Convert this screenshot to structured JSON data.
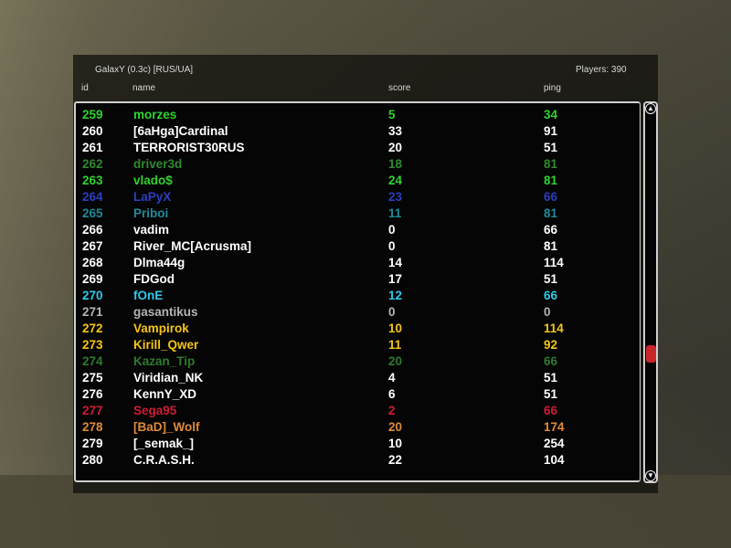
{
  "server": {
    "name": "GalaxY (0.3c) [RUS/UA]",
    "players_label": "Players: 390"
  },
  "columns": {
    "id": "id",
    "name": "name",
    "score": "score",
    "ping": "ping"
  },
  "rows": [
    {
      "id": "259",
      "name": "morzes",
      "score": "5",
      "ping": "34",
      "color": "#2fd22f"
    },
    {
      "id": "260",
      "name": "[6aHga]Cardinal",
      "score": "33",
      "ping": "91",
      "color": "#ffffff"
    },
    {
      "id": "261",
      "name": "TERRORIST30RUS",
      "score": "20",
      "ping": "51",
      "color": "#ffffff"
    },
    {
      "id": "262",
      "name": "driver3d",
      "score": "18",
      "ping": "81",
      "color": "#2f8a2f"
    },
    {
      "id": "263",
      "name": "vlado$",
      "score": "24",
      "ping": "81",
      "color": "#2fd22f"
    },
    {
      "id": "264",
      "name": "LaPyX",
      "score": "23",
      "ping": "66",
      "color": "#2a3fbf"
    },
    {
      "id": "265",
      "name": "Priboi",
      "score": "11",
      "ping": "81",
      "color": "#1f8a9a"
    },
    {
      "id": "266",
      "name": "vadim",
      "score": "0",
      "ping": "66",
      "color": "#ffffff"
    },
    {
      "id": "267",
      "name": "River_MC[Acrusma]",
      "score": "0",
      "ping": "81",
      "color": "#ffffff"
    },
    {
      "id": "268",
      "name": "Dlma44g",
      "score": "14",
      "ping": "114",
      "color": "#ffffff"
    },
    {
      "id": "269",
      "name": "FDGod",
      "score": "17",
      "ping": "51",
      "color": "#ffffff"
    },
    {
      "id": "270",
      "name": "fOnE",
      "score": "12",
      "ping": "66",
      "color": "#2fc8e8"
    },
    {
      "id": "271",
      "name": "gasantikus",
      "score": "0",
      "ping": "0",
      "color": "#b4b4b4"
    },
    {
      "id": "272",
      "name": "Vampirok",
      "score": "10",
      "ping": "114",
      "color": "#f5c518"
    },
    {
      "id": "273",
      "name": "Kirill_Qwer",
      "score": "11",
      "ping": "92",
      "color": "#f5c518"
    },
    {
      "id": "274",
      "name": "Kazan_Tip",
      "score": "20",
      "ping": "66",
      "color": "#2f7a2f"
    },
    {
      "id": "275",
      "name": "Viridian_NK",
      "score": "4",
      "ping": "51",
      "color": "#ffffff"
    },
    {
      "id": "276",
      "name": "KennY_XD",
      "score": "6",
      "ping": "51",
      "color": "#ffffff"
    },
    {
      "id": "277",
      "name": "Sega95",
      "score": "2",
      "ping": "66",
      "color": "#d01c36"
    },
    {
      "id": "278",
      "name": "[BaD]_Wolf",
      "score": "20",
      "ping": "174",
      "color": "#e08a3a"
    },
    {
      "id": "279",
      "name": "[_semak_]",
      "score": "10",
      "ping": "254",
      "color": "#ffffff"
    },
    {
      "id": "280",
      "name": "C.R.A.S.H.",
      "score": "22",
      "ping": "104",
      "color": "#ffffff"
    }
  ],
  "scrollbar": {
    "position_fraction": 0.67,
    "thumb_color": "#c8262b"
  }
}
